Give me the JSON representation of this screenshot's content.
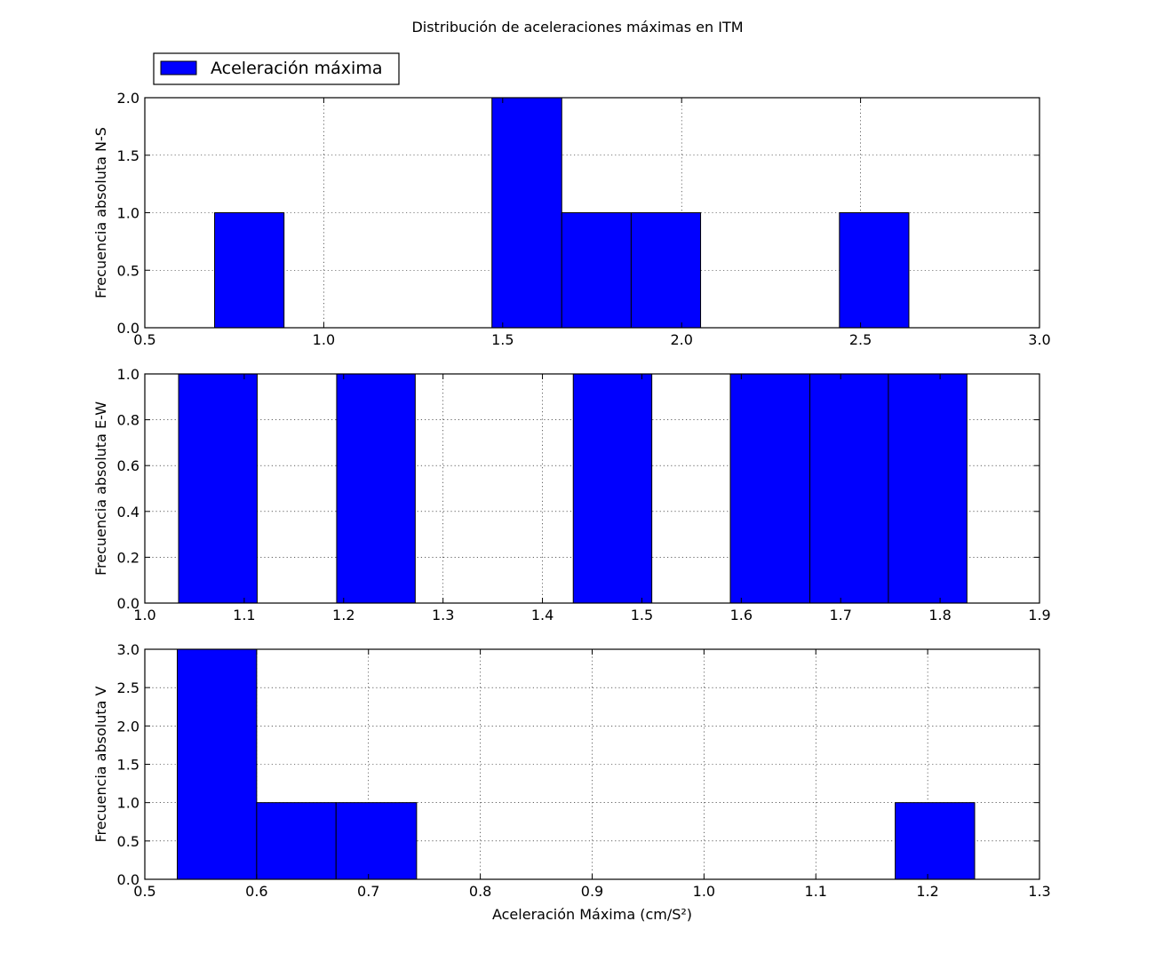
{
  "figure_title": "Distribución de aceleraciones máximas en ITM",
  "legend": {
    "label": "Aceleración máxima",
    "color": "#0000ff",
    "placement": "top-left"
  },
  "chart_data": [
    {
      "type": "bar",
      "subtype": "histogram",
      "ylabel": "Frecuencia absoluta N-S",
      "xlabel": "",
      "xlim": [
        0.5,
        3.0
      ],
      "ylim": [
        0.0,
        2.0
      ],
      "grid": true,
      "color": "#0000ff",
      "xticks": [
        "0.5",
        "1.0",
        "1.5",
        "2.0",
        "2.5",
        "3.0"
      ],
      "yticks": [
        "0.0",
        "0.5",
        "1.0",
        "1.5",
        "2.0"
      ],
      "bins": [
        {
          "start": 0.695,
          "end": 0.889,
          "count": 1
        },
        {
          "start": 1.47,
          "end": 1.665,
          "count": 2
        },
        {
          "start": 1.665,
          "end": 1.859,
          "count": 1
        },
        {
          "start": 1.859,
          "end": 2.053,
          "count": 1
        },
        {
          "start": 2.441,
          "end": 2.635,
          "count": 1
        }
      ]
    },
    {
      "type": "bar",
      "subtype": "histogram",
      "ylabel": "Frecuencia absoluta E-W",
      "xlabel": "",
      "xlim": [
        1.0,
        1.9
      ],
      "ylim": [
        0.0,
        1.0
      ],
      "grid": true,
      "color": "#0000ff",
      "xticks": [
        "1.0",
        "1.1",
        "1.2",
        "1.3",
        "1.4",
        "1.5",
        "1.6",
        "1.7",
        "1.8",
        "1.9"
      ],
      "yticks": [
        "0.0",
        "0.2",
        "0.4",
        "0.6",
        "0.8",
        "1.0"
      ],
      "bins": [
        {
          "start": 1.034,
          "end": 1.113,
          "count": 1
        },
        {
          "start": 1.193,
          "end": 1.272,
          "count": 1
        },
        {
          "start": 1.431,
          "end": 1.51,
          "count": 1
        },
        {
          "start": 1.589,
          "end": 1.669,
          "count": 1
        },
        {
          "start": 1.669,
          "end": 1.748,
          "count": 1
        },
        {
          "start": 1.748,
          "end": 1.827,
          "count": 1
        }
      ]
    },
    {
      "type": "bar",
      "subtype": "histogram",
      "ylabel": "Frecuencia absoluta V",
      "xlabel": "Aceleración Máxima (cm/S²)",
      "xlim": [
        0.5,
        1.3
      ],
      "ylim": [
        0.0,
        3.0
      ],
      "grid": true,
      "color": "#0000ff",
      "xticks": [
        "0.5",
        "0.6",
        "0.7",
        "0.8",
        "0.9",
        "1.0",
        "1.1",
        "1.2",
        "1.3"
      ],
      "yticks": [
        "0.0",
        "0.5",
        "1.0",
        "1.5",
        "2.0",
        "2.5",
        "3.0"
      ],
      "bins": [
        {
          "start": 0.529,
          "end": 0.6,
          "count": 3
        },
        {
          "start": 0.6,
          "end": 0.671,
          "count": 1
        },
        {
          "start": 0.671,
          "end": 0.743,
          "count": 1
        },
        {
          "start": 1.171,
          "end": 1.242,
          "count": 1
        }
      ]
    }
  ]
}
